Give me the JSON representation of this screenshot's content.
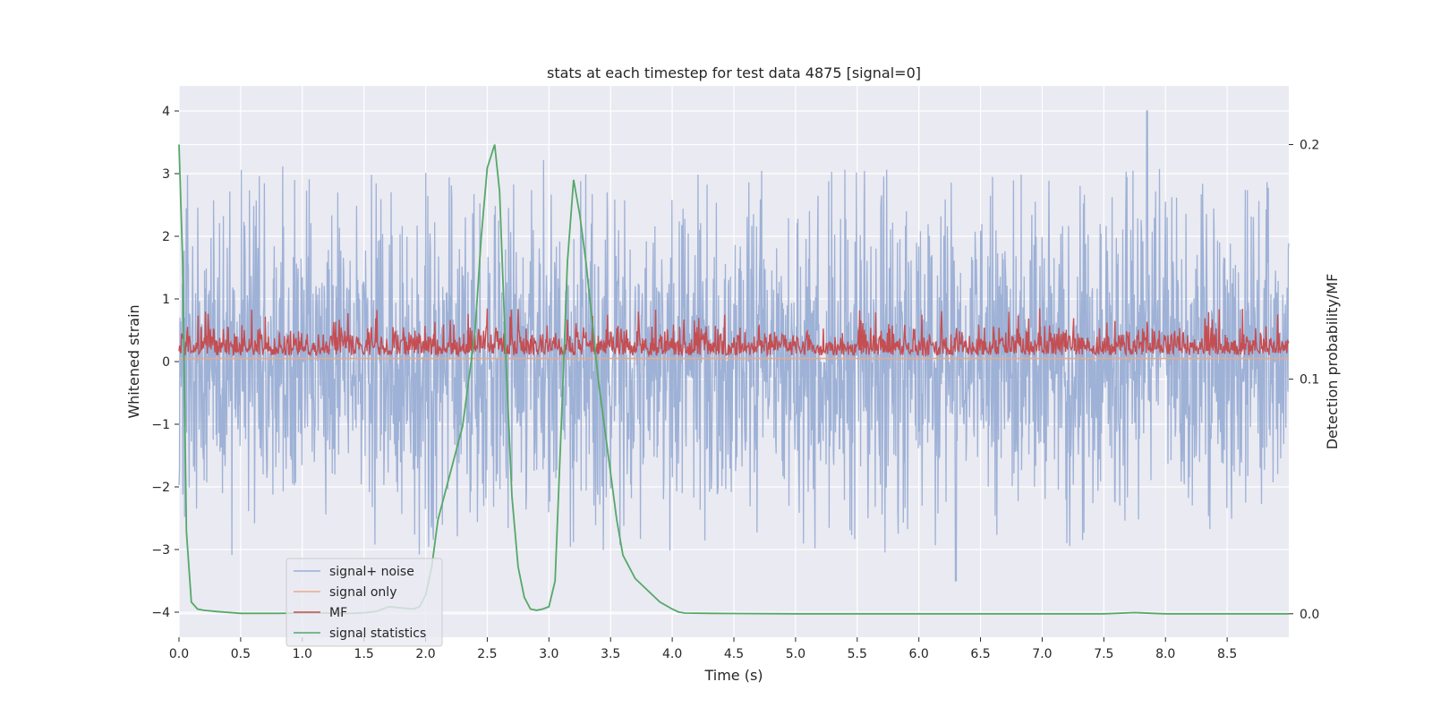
{
  "chart_data": {
    "type": "line",
    "title": "stats at each timestep for test data 4875 [signal=0]",
    "xlabel": "Time (s)",
    "ylabel": "Whitened strain",
    "y2label": "Detection probability/MF",
    "xlim": [
      0,
      9
    ],
    "ylim": [
      -4.4,
      4.4
    ],
    "y2lim": [
      -0.01,
      0.225
    ],
    "x_ticks": [
      "0.0",
      "0.5",
      "1.0",
      "1.5",
      "2.0",
      "2.5",
      "3.0",
      "3.5",
      "4.0",
      "4.5",
      "5.0",
      "5.5",
      "6.0",
      "6.5",
      "7.0",
      "7.5",
      "8.0",
      "8.5"
    ],
    "y_ticks": [
      "4",
      "3",
      "2",
      "1",
      "0",
      "−1",
      "−2",
      "−3",
      "−4"
    ],
    "y2_ticks": [
      "0.2",
      "0.1",
      "0.0"
    ],
    "grid": true,
    "legend_position": "lower-left",
    "series": [
      {
        "name": "signal+ noise",
        "axis": "left",
        "color": "#9aaed4",
        "description_points": {
          "upper_envelope_typical": 2.5,
          "lower_envelope_typical": -2.5,
          "max": 4.0,
          "max_at": 7.85,
          "min": -3.5,
          "min_at": 6.3
        }
      },
      {
        "name": "signal only",
        "axis": "left",
        "color": "#e8a98a",
        "value": 0.05
      },
      {
        "name": "MF",
        "axis": "left",
        "color": "#c44e52",
        "baseline": 0.1,
        "typical_peak": 0.55,
        "max": 0.85
      },
      {
        "name": "signal statistics",
        "axis": "right",
        "color": "#55a868",
        "x": [
          0.0,
          0.03,
          0.06,
          0.1,
          0.15,
          0.2,
          0.3,
          0.5,
          0.8,
          1.0,
          1.2,
          1.4,
          1.5,
          1.6,
          1.7,
          1.8,
          1.9,
          1.95,
          2.0,
          2.05,
          2.1,
          2.2,
          2.3,
          2.4,
          2.45,
          2.5,
          2.56,
          2.6,
          2.65,
          2.7,
          2.75,
          2.8,
          2.85,
          2.9,
          2.95,
          3.0,
          3.05,
          3.1,
          3.15,
          3.2,
          3.25,
          3.3,
          3.35,
          3.4,
          3.45,
          3.5,
          3.55,
          3.6,
          3.7,
          3.8,
          3.9,
          4.0,
          4.05,
          4.1,
          4.3,
          4.5,
          5.0,
          6.0,
          7.0,
          7.5,
          7.75,
          7.9,
          8.0,
          8.5,
          9.0
        ],
        "y": [
          0.2,
          0.15,
          0.035,
          0.005,
          0.002,
          0.0015,
          0.001,
          0.0002,
          0.0002,
          0.0003,
          0.0003,
          0.0002,
          0.0004,
          0.001,
          0.003,
          0.0025,
          0.002,
          0.003,
          0.008,
          0.02,
          0.04,
          0.06,
          0.08,
          0.12,
          0.16,
          0.19,
          0.2,
          0.18,
          0.11,
          0.05,
          0.02,
          0.007,
          0.002,
          0.0015,
          0.002,
          0.003,
          0.014,
          0.08,
          0.15,
          0.185,
          0.17,
          0.15,
          0.125,
          0.1,
          0.08,
          0.06,
          0.04,
          0.025,
          0.015,
          0.01,
          0.005,
          0.002,
          0.0008,
          0.0003,
          0.0002,
          0.0001,
          0.0,
          0.0,
          0.0,
          0.0,
          0.0005,
          0.0002,
          0.0,
          0.0,
          0.0
        ]
      }
    ]
  }
}
